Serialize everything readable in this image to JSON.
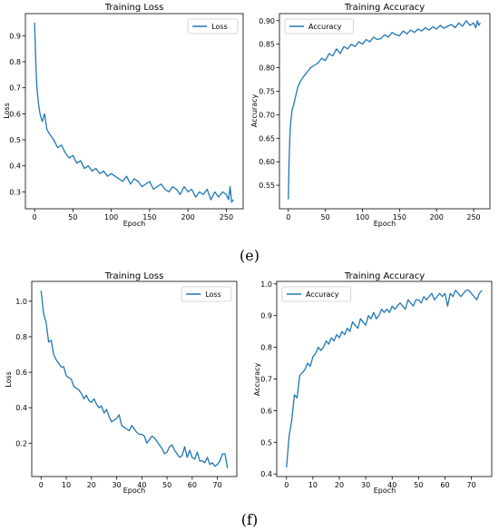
{
  "figure": {
    "caption_e": "(e)",
    "caption_f": "(f)"
  },
  "colors": {
    "series": "#1f77b4",
    "frame": "#000000",
    "background": "#ffffff"
  },
  "chart_data": [
    {
      "id": "e-loss",
      "type": "line",
      "title": "Training Loss",
      "xlabel": "Epoch",
      "ylabel": "Loss",
      "xlim": [
        -12,
        272
      ],
      "ylim": [
        0.235,
        0.985
      ],
      "xticks": [
        0,
        50,
        100,
        150,
        200,
        250
      ],
      "xtick_labels": [
        "0",
        "50",
        "100",
        "150",
        "200",
        "250"
      ],
      "yticks": [
        0.3,
        0.4,
        0.5,
        0.6,
        0.7,
        0.8,
        0.9
      ],
      "ytick_labels": [
        "0.3",
        "0.4",
        "0.5",
        "0.6",
        "0.7",
        "0.8",
        "0.9"
      ],
      "legend": "top-right",
      "grid": false,
      "series": [
        {
          "name": "Loss",
          "x": [
            0,
            1,
            2,
            3,
            5,
            7,
            10,
            13,
            16,
            20,
            25,
            30,
            35,
            40,
            45,
            50,
            55,
            60,
            65,
            70,
            75,
            80,
            85,
            90,
            95,
            100,
            105,
            110,
            115,
            120,
            125,
            130,
            135,
            140,
            145,
            150,
            155,
            160,
            165,
            170,
            175,
            180,
            185,
            190,
            195,
            200,
            205,
            210,
            215,
            220,
            225,
            230,
            235,
            240,
            245,
            250,
            253,
            255,
            257,
            259
          ],
          "values": [
            0.95,
            0.85,
            0.76,
            0.7,
            0.64,
            0.6,
            0.57,
            0.6,
            0.54,
            0.52,
            0.5,
            0.47,
            0.48,
            0.45,
            0.43,
            0.44,
            0.41,
            0.42,
            0.39,
            0.4,
            0.38,
            0.39,
            0.37,
            0.38,
            0.36,
            0.37,
            0.36,
            0.35,
            0.34,
            0.36,
            0.33,
            0.35,
            0.34,
            0.32,
            0.33,
            0.34,
            0.31,
            0.32,
            0.33,
            0.31,
            0.3,
            0.32,
            0.31,
            0.29,
            0.32,
            0.3,
            0.31,
            0.28,
            0.3,
            0.29,
            0.31,
            0.27,
            0.3,
            0.28,
            0.3,
            0.29,
            0.27,
            0.32,
            0.26,
            0.27
          ]
        }
      ]
    },
    {
      "id": "e-acc",
      "type": "line",
      "title": "Training Accuracy",
      "xlabel": "Epoch",
      "ylabel": "Accuracy",
      "xlim": [
        -12,
        272
      ],
      "ylim": [
        0.5,
        0.915
      ],
      "xticks": [
        0,
        50,
        100,
        150,
        200,
        250
      ],
      "xtick_labels": [
        "0",
        "50",
        "100",
        "150",
        "200",
        "250"
      ],
      "yticks": [
        0.55,
        0.6,
        0.65,
        0.7,
        0.75,
        0.8,
        0.85,
        0.9
      ],
      "ytick_labels": [
        "0.55",
        "0.60",
        "0.65",
        "0.70",
        "0.75",
        "0.80",
        "0.85",
        "0.90"
      ],
      "legend": "top-left",
      "grid": false,
      "series": [
        {
          "name": "Accuracy",
          "x": [
            0,
            1,
            2,
            3,
            5,
            7,
            10,
            13,
            16,
            20,
            25,
            30,
            35,
            40,
            45,
            50,
            55,
            60,
            65,
            70,
            75,
            80,
            85,
            90,
            95,
            100,
            105,
            110,
            115,
            120,
            125,
            130,
            135,
            140,
            145,
            150,
            155,
            160,
            165,
            170,
            175,
            180,
            185,
            190,
            195,
            200,
            205,
            210,
            215,
            220,
            225,
            230,
            235,
            240,
            245,
            250,
            253,
            255,
            257,
            259
          ],
          "values": [
            0.52,
            0.6,
            0.65,
            0.68,
            0.71,
            0.72,
            0.74,
            0.76,
            0.77,
            0.78,
            0.79,
            0.8,
            0.805,
            0.81,
            0.82,
            0.815,
            0.83,
            0.825,
            0.84,
            0.83,
            0.845,
            0.84,
            0.85,
            0.845,
            0.855,
            0.85,
            0.86,
            0.855,
            0.865,
            0.86,
            0.862,
            0.87,
            0.865,
            0.875,
            0.87,
            0.868,
            0.878,
            0.872,
            0.88,
            0.875,
            0.882,
            0.878,
            0.885,
            0.88,
            0.887,
            0.882,
            0.89,
            0.884,
            0.888,
            0.892,
            0.885,
            0.895,
            0.888,
            0.9,
            0.89,
            0.895,
            0.885,
            0.9,
            0.89,
            0.895
          ]
        }
      ]
    },
    {
      "id": "f-loss",
      "type": "line",
      "title": "Training Loss",
      "xlabel": "Epoch",
      "ylabel": "Loss",
      "xlim": [
        -3.7,
        77.7
      ],
      "ylim": [
        0.012,
        1.112
      ],
      "xticks": [
        0,
        10,
        20,
        30,
        40,
        50,
        60,
        70
      ],
      "xtick_labels": [
        "0",
        "10",
        "20",
        "30",
        "40",
        "50",
        "60",
        "70"
      ],
      "yticks": [
        0.2,
        0.4,
        0.6,
        0.8,
        1.0
      ],
      "ytick_labels": [
        "0.2",
        "0.4",
        "0.6",
        "0.8",
        "1.0"
      ],
      "legend": "top-right",
      "grid": false,
      "series": [
        {
          "name": "Loss",
          "x": [
            0,
            1,
            2,
            3,
            4,
            5,
            6,
            7,
            8,
            9,
            10,
            11,
            12,
            13,
            14,
            15,
            16,
            17,
            18,
            19,
            20,
            21,
            22,
            23,
            24,
            25,
            26,
            27,
            28,
            29,
            30,
            31,
            32,
            33,
            34,
            35,
            36,
            37,
            38,
            39,
            40,
            41,
            42,
            43,
            44,
            45,
            46,
            47,
            48,
            49,
            50,
            51,
            52,
            53,
            54,
            55,
            56,
            57,
            58,
            59,
            60,
            61,
            62,
            63,
            64,
            65,
            66,
            67,
            68,
            69,
            70,
            71,
            72,
            73,
            74
          ],
          "values": [
            1.06,
            0.93,
            0.88,
            0.77,
            0.78,
            0.7,
            0.67,
            0.65,
            0.63,
            0.63,
            0.58,
            0.57,
            0.56,
            0.52,
            0.51,
            0.5,
            0.48,
            0.45,
            0.47,
            0.44,
            0.43,
            0.45,
            0.42,
            0.4,
            0.41,
            0.37,
            0.39,
            0.35,
            0.32,
            0.33,
            0.34,
            0.36,
            0.3,
            0.29,
            0.28,
            0.27,
            0.3,
            0.28,
            0.26,
            0.25,
            0.25,
            0.24,
            0.2,
            0.22,
            0.24,
            0.23,
            0.21,
            0.19,
            0.17,
            0.14,
            0.15,
            0.18,
            0.19,
            0.16,
            0.14,
            0.12,
            0.13,
            0.18,
            0.12,
            0.16,
            0.12,
            0.11,
            0.15,
            0.1,
            0.1,
            0.09,
            0.12,
            0.08,
            0.09,
            0.07,
            0.08,
            0.1,
            0.14,
            0.14,
            0.06
          ]
        }
      ]
    },
    {
      "id": "f-acc",
      "type": "line",
      "title": "Training Accuracy",
      "xlabel": "Epoch",
      "ylabel": "Accuracy",
      "xlim": [
        -3.7,
        77.7
      ],
      "ylim": [
        0.392,
        1.008
      ],
      "xticks": [
        0,
        10,
        20,
        30,
        40,
        50,
        60,
        70
      ],
      "xtick_labels": [
        "0",
        "10",
        "20",
        "30",
        "40",
        "50",
        "60",
        "70"
      ],
      "yticks": [
        0.4,
        0.5,
        0.6,
        0.7,
        0.8,
        0.9,
        1.0
      ],
      "ytick_labels": [
        "0.4",
        "0.5",
        "0.6",
        "0.7",
        "0.8",
        "0.9",
        "1.0"
      ],
      "legend": "top-left",
      "grid": false,
      "series": [
        {
          "name": "Accuracy",
          "x": [
            0,
            1,
            2,
            3,
            4,
            5,
            6,
            7,
            8,
            9,
            10,
            11,
            12,
            13,
            14,
            15,
            16,
            17,
            18,
            19,
            20,
            21,
            22,
            23,
            24,
            25,
            26,
            27,
            28,
            29,
            30,
            31,
            32,
            33,
            34,
            35,
            36,
            37,
            38,
            39,
            40,
            41,
            42,
            43,
            44,
            45,
            46,
            47,
            48,
            49,
            50,
            51,
            52,
            53,
            54,
            55,
            56,
            57,
            58,
            59,
            60,
            61,
            62,
            63,
            64,
            65,
            66,
            67,
            68,
            69,
            70,
            71,
            72,
            73,
            74
          ],
          "values": [
            0.42,
            0.52,
            0.57,
            0.65,
            0.64,
            0.71,
            0.72,
            0.73,
            0.75,
            0.74,
            0.77,
            0.78,
            0.8,
            0.79,
            0.8,
            0.82,
            0.81,
            0.83,
            0.82,
            0.84,
            0.83,
            0.85,
            0.84,
            0.86,
            0.85,
            0.88,
            0.87,
            0.86,
            0.89,
            0.88,
            0.87,
            0.9,
            0.89,
            0.91,
            0.89,
            0.9,
            0.92,
            0.91,
            0.92,
            0.91,
            0.93,
            0.92,
            0.93,
            0.94,
            0.93,
            0.92,
            0.95,
            0.94,
            0.93,
            0.95,
            0.95,
            0.94,
            0.96,
            0.95,
            0.96,
            0.97,
            0.95,
            0.96,
            0.97,
            0.96,
            0.97,
            0.93,
            0.97,
            0.96,
            0.98,
            0.97,
            0.96,
            0.97,
            0.98,
            0.98,
            0.97,
            0.96,
            0.95,
            0.97,
            0.98
          ]
        }
      ]
    }
  ]
}
